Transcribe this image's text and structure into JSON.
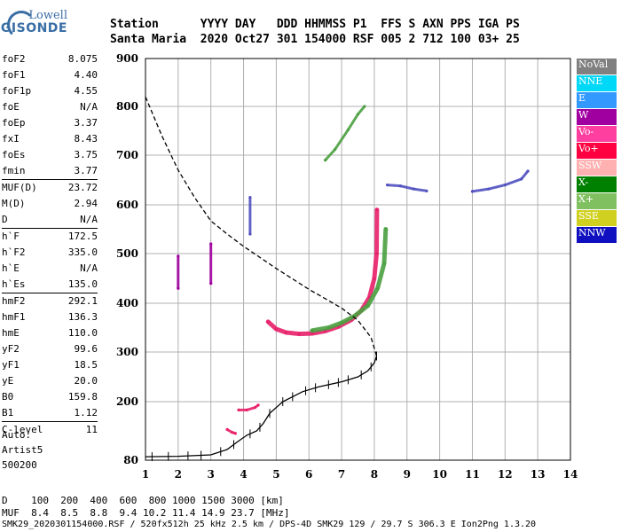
{
  "logo": {
    "line1": "Lowell",
    "line2": "DIGISONDE"
  },
  "header": {
    "row1": "Station      YYYY DAY   DDD HHMMSS P1  FFS S AXN PPS IGA PS",
    "row2": "Santa Maria  2020 Oct27 301 154000 RSF 005 2 712 100 03+ 25"
  },
  "params": [
    [
      {
        "label": "foF2",
        "value": "8.075"
      },
      {
        "label": "foF1",
        "value": "4.40"
      },
      {
        "label": "foF1p",
        "value": "4.55"
      },
      {
        "label": "foE",
        "value": "N/A"
      },
      {
        "label": "foEp",
        "value": "3.37"
      },
      {
        "label": "fxI",
        "value": "8.43"
      },
      {
        "label": "foEs",
        "value": "3.75"
      },
      {
        "label": "fmin",
        "value": "3.77"
      }
    ],
    [
      {
        "label": "MUF(D)",
        "value": "23.72"
      },
      {
        "label": "M(D)",
        "value": "2.94"
      },
      {
        "label": "D",
        "value": "N/A"
      }
    ],
    [
      {
        "label": "h`F",
        "value": "172.5"
      },
      {
        "label": "h`F2",
        "value": "335.0"
      },
      {
        "label": "h`E",
        "value": "N/A"
      },
      {
        "label": "h`Es",
        "value": "135.0"
      }
    ],
    [
      {
        "label": "hmF2",
        "value": "292.1"
      },
      {
        "label": "hmF1",
        "value": "136.3"
      },
      {
        "label": "hmE",
        "value": "110.0"
      },
      {
        "label": "yF2",
        "value": "99.6"
      },
      {
        "label": "yF1",
        "value": "18.5"
      },
      {
        "label": "yE",
        "value": "20.0"
      },
      {
        "label": "B0",
        "value": "159.8"
      },
      {
        "label": "B1",
        "value": "1.12"
      }
    ],
    [
      {
        "label": "C-level",
        "value": "11"
      }
    ]
  ],
  "auto": {
    "line1": "Auto:",
    "line2": "Artist5",
    "line3": "500200"
  },
  "legend": [
    {
      "label": "NoVal",
      "color": "#808080"
    },
    {
      "label": "NNE",
      "color": "#00d8f8"
    },
    {
      "label": "E",
      "color": "#3399ff"
    },
    {
      "label": "W",
      "color": "#a000a0"
    },
    {
      "label": "Vo-",
      "color": "#ff3fa0"
    },
    {
      "label": "Vo+",
      "color": "#ff0040"
    },
    {
      "label": "SSW",
      "color": "#ffb0b0"
    },
    {
      "label": "X-",
      "color": "#008000"
    },
    {
      "label": "X+",
      "color": "#80c060"
    },
    {
      "label": "SSE",
      "color": "#d0d020"
    },
    {
      "label": "NNW",
      "color": "#1010c0"
    }
  ],
  "footer": {
    "row1": "D    100  200  400  600  800 1000 1500 3000 [km]",
    "row2": "MUF  8.4  8.5  8.8  9.4 10.2 11.4 14.9 23.7 [MHz]",
    "row3": "SMK29_2020301154000.RSF / 520fx512h 25 kHz 2.5 km / DPS-4D SMK29 129 / 29.7 S 306.3 E Ion2Png 1.3.20"
  },
  "chart_data": {
    "type": "scatter",
    "xlabel": "",
    "ylabel": "",
    "xlim": [
      1,
      14
    ],
    "ylim": [
      80,
      900
    ],
    "x_ticks": [
      1,
      2,
      3,
      4,
      5,
      6,
      7,
      8,
      9,
      10,
      11,
      12,
      13,
      14
    ],
    "y_ticks": [
      80,
      200,
      300,
      400,
      500,
      600,
      700,
      800,
      900
    ],
    "grid": true,
    "series": [
      {
        "name": "O-trace (Vo-/Vo+)",
        "color": "#e8206a",
        "points": [
          [
            4.75,
            362
          ],
          [
            5.0,
            347
          ],
          [
            5.3,
            340
          ],
          [
            5.7,
            337
          ],
          [
            6.1,
            338
          ],
          [
            6.5,
            343
          ],
          [
            6.9,
            352
          ],
          [
            7.3,
            366
          ],
          [
            7.6,
            385
          ],
          [
            7.85,
            412
          ],
          [
            8.0,
            450
          ],
          [
            8.07,
            500
          ],
          [
            8.08,
            590
          ]
        ]
      },
      {
        "name": "X-trace (X+/X-)",
        "color": "#4aa040",
        "points": [
          [
            6.1,
            344
          ],
          [
            6.6,
            350
          ],
          [
            7.0,
            360
          ],
          [
            7.4,
            374
          ],
          [
            7.8,
            395
          ],
          [
            8.1,
            430
          ],
          [
            8.3,
            480
          ],
          [
            8.35,
            550
          ]
        ]
      },
      {
        "name": "Es trace",
        "color": "#e8206a",
        "points": [
          [
            3.85,
            183
          ],
          [
            4.1,
            183
          ],
          [
            4.35,
            188
          ],
          [
            4.45,
            193
          ]
        ]
      },
      {
        "name": "E trace",
        "color": "#e8206a",
        "points": [
          [
            3.5,
            143
          ],
          [
            3.65,
            137
          ],
          [
            3.75,
            135
          ]
        ]
      },
      {
        "name": "Oblique F (upper)",
        "color": "#4aa040",
        "points": [
          [
            6.5,
            690
          ],
          [
            6.8,
            712
          ],
          [
            7.2,
            752
          ],
          [
            7.5,
            784
          ],
          [
            7.7,
            800
          ]
        ]
      },
      {
        "name": "Oblique F (far)",
        "color": "#5050c0",
        "points": [
          [
            11.0,
            627
          ],
          [
            11.5,
            632
          ],
          [
            12.0,
            640
          ],
          [
            12.5,
            652
          ],
          [
            12.7,
            668
          ]
        ]
      },
      {
        "name": "Spurious (right)",
        "color": "#5050c0",
        "points": [
          [
            8.4,
            640
          ],
          [
            8.8,
            638
          ],
          [
            9.2,
            632
          ],
          [
            9.6,
            628
          ]
        ]
      },
      {
        "name": "Vertical (2MHz)",
        "color": "#a000a0",
        "points": [
          [
            2.0,
            430
          ],
          [
            2.0,
            495
          ]
        ]
      },
      {
        "name": "Vertical (3MHz)",
        "color": "#a000a0",
        "points": [
          [
            3.0,
            440
          ],
          [
            3.0,
            520
          ]
        ]
      },
      {
        "name": "Vertical (4.2MHz)",
        "color": "#5050c0",
        "points": [
          [
            4.2,
            540
          ],
          [
            4.2,
            615
          ]
        ]
      }
    ],
    "profile_dashed": {
      "name": "Electron density profile",
      "points": [
        [
          1.0,
          820
        ],
        [
          1.5,
          740
        ],
        [
          2.0,
          670
        ],
        [
          2.5,
          615
        ],
        [
          3.0,
          567
        ],
        [
          3.5,
          540
        ],
        [
          4.0,
          515
        ],
        [
          5.0,
          470
        ],
        [
          6.0,
          428
        ],
        [
          7.0,
          390
        ],
        [
          7.5,
          365
        ],
        [
          7.9,
          330
        ],
        [
          8.07,
          292
        ]
      ]
    },
    "profile_solid": {
      "name": "Virtual height profile",
      "points": [
        [
          1.0,
          87
        ],
        [
          2.0,
          88
        ],
        [
          3.0,
          91
        ],
        [
          3.5,
          102
        ],
        [
          3.8,
          117
        ],
        [
          4.1,
          131
        ],
        [
          4.4,
          140
        ],
        [
          4.6,
          155
        ],
        [
          4.8,
          176
        ],
        [
          5.2,
          200
        ],
        [
          5.8,
          220
        ],
        [
          6.3,
          230
        ],
        [
          7.0,
          240
        ],
        [
          7.5,
          250
        ],
        [
          7.8,
          262
        ],
        [
          8.0,
          278
        ],
        [
          8.07,
          292
        ]
      ]
    },
    "profile_crosses": [
      1.2,
      1.7,
      2.3,
      2.7,
      3.3,
      3.7,
      4.2,
      4.5,
      4.8,
      5.2,
      5.5,
      5.9,
      6.2,
      6.6,
      6.9,
      7.2,
      7.6,
      7.9,
      8.07
    ]
  }
}
